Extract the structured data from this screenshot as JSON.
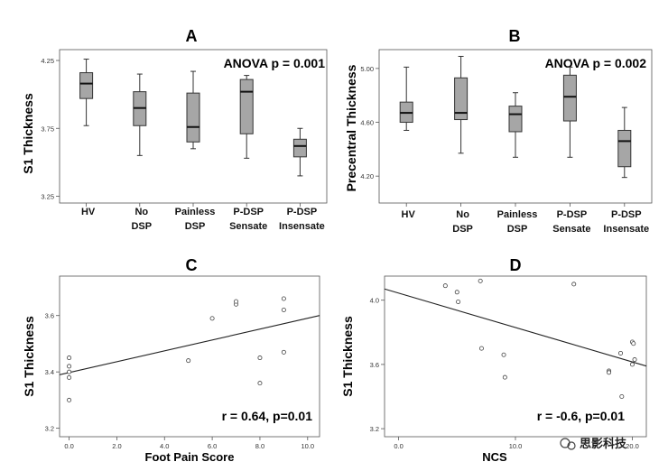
{
  "watermark": {
    "text": "思影科技"
  },
  "chart_data": [
    {
      "panel": "A",
      "type": "box",
      "note": "ANOVA p = 0.001",
      "ylabel": "S1 Thickness",
      "ylim": [
        3.2,
        4.33
      ],
      "yticks": [
        3.25,
        3.75,
        4.25
      ],
      "ytick_labels": [
        "3.25",
        "3.75",
        "4.25"
      ],
      "categories": [
        [
          "HV"
        ],
        [
          "No",
          "DSP"
        ],
        [
          "Painless",
          "DSP"
        ],
        [
          "P-DSP",
          "Sensate"
        ],
        [
          "P-DSP",
          "Insensate"
        ]
      ],
      "boxes": [
        {
          "whislo": 3.77,
          "q1": 3.97,
          "med": 4.08,
          "q3": 4.16,
          "whishi": 4.26
        },
        {
          "whislo": 3.55,
          "q1": 3.77,
          "med": 3.9,
          "q3": 4.02,
          "whishi": 4.15
        },
        {
          "whislo": 3.6,
          "q1": 3.65,
          "med": 3.76,
          "q3": 4.01,
          "whishi": 4.17
        },
        {
          "whislo": 3.53,
          "q1": 3.71,
          "med": 4.02,
          "q3": 4.11,
          "whishi": 4.14
        },
        {
          "whislo": 3.4,
          "q1": 3.54,
          "med": 3.62,
          "q3": 3.67,
          "whishi": 3.75
        }
      ]
    },
    {
      "panel": "B",
      "type": "box",
      "note": "ANOVA p = 0.002",
      "ylabel": "Precentral Thickness",
      "ylim": [
        4.0,
        5.14
      ],
      "yticks": [
        4.2,
        4.6,
        5.0
      ],
      "ytick_labels": [
        "4.20",
        "4.60",
        "5.00"
      ],
      "categories": [
        [
          "HV"
        ],
        [
          "No",
          "DSP"
        ],
        [
          "Painless",
          "DSP"
        ],
        [
          "P-DSP",
          "Sensate"
        ],
        [
          "P-DSP",
          "Insensate"
        ]
      ],
      "boxes": [
        {
          "whislo": 4.54,
          "q1": 4.6,
          "med": 4.67,
          "q3": 4.75,
          "whishi": 5.01
        },
        {
          "whislo": 4.37,
          "q1": 4.62,
          "med": 4.67,
          "q3": 4.93,
          "whishi": 5.09
        },
        {
          "whislo": 4.34,
          "q1": 4.53,
          "med": 4.66,
          "q3": 4.72,
          "whishi": 4.82
        },
        {
          "whislo": 4.34,
          "q1": 4.61,
          "med": 4.79,
          "q3": 4.95,
          "whishi": 5.01
        },
        {
          "whislo": 4.19,
          "q1": 4.27,
          "med": 4.46,
          "q3": 4.54,
          "whishi": 4.71
        }
      ]
    },
    {
      "panel": "C",
      "type": "scatter",
      "note": "r = 0.64, p=0.01",
      "xlabel": "Foot Pain Score",
      "ylabel": "S1 Thickness",
      "xlim": [
        -0.4,
        10.5
      ],
      "ylim": [
        3.17,
        3.74
      ],
      "xticks": [
        0,
        2,
        4,
        6,
        8,
        10
      ],
      "xtick_labels": [
        "0.0",
        "2.0",
        "4.0",
        "6.0",
        "8.0",
        "10.0"
      ],
      "yticks": [
        3.2,
        3.4,
        3.6
      ],
      "ytick_labels": [
        "3.2",
        "3.4",
        "3.6"
      ],
      "x": [
        0,
        0,
        0,
        0,
        0,
        5,
        6,
        7,
        7,
        8,
        8,
        9,
        9,
        9
      ],
      "y": [
        3.45,
        3.42,
        3.4,
        3.38,
        3.3,
        3.44,
        3.59,
        3.64,
        3.65,
        3.45,
        3.36,
        3.66,
        3.62,
        3.47
      ],
      "fit": {
        "x": [
          -0.4,
          10.5
        ],
        "y": [
          3.39,
          3.6
        ]
      }
    },
    {
      "panel": "D",
      "type": "scatter",
      "note": "r = -0.6, p=0.01",
      "xlabel": "NCS",
      "ylabel": "S1 Thickness",
      "xlim": [
        -1.2,
        21.2
      ],
      "ylim": [
        3.15,
        4.15
      ],
      "xticks": [
        0,
        10,
        20
      ],
      "xtick_labels": [
        "0.0",
        "10.0",
        "20.0"
      ],
      "yticks": [
        3.2,
        3.6,
        4.0
      ],
      "ytick_labels": [
        "3.2",
        "3.6",
        "4.0"
      ],
      "x": [
        4.0,
        5.0,
        5.1,
        7.0,
        7.1,
        9.0,
        9.1,
        15.0,
        18.0,
        18.0,
        19.0,
        19.1,
        20.0,
        20.1,
        20.2,
        20.0
      ],
      "y": [
        4.09,
        4.05,
        3.99,
        4.12,
        3.7,
        3.66,
        3.52,
        4.1,
        3.56,
        3.55,
        3.67,
        3.4,
        3.74,
        3.73,
        3.63,
        3.6
      ],
      "fit": {
        "x": [
          -1.2,
          21.2
        ],
        "y": [
          4.07,
          3.59
        ]
      }
    }
  ]
}
